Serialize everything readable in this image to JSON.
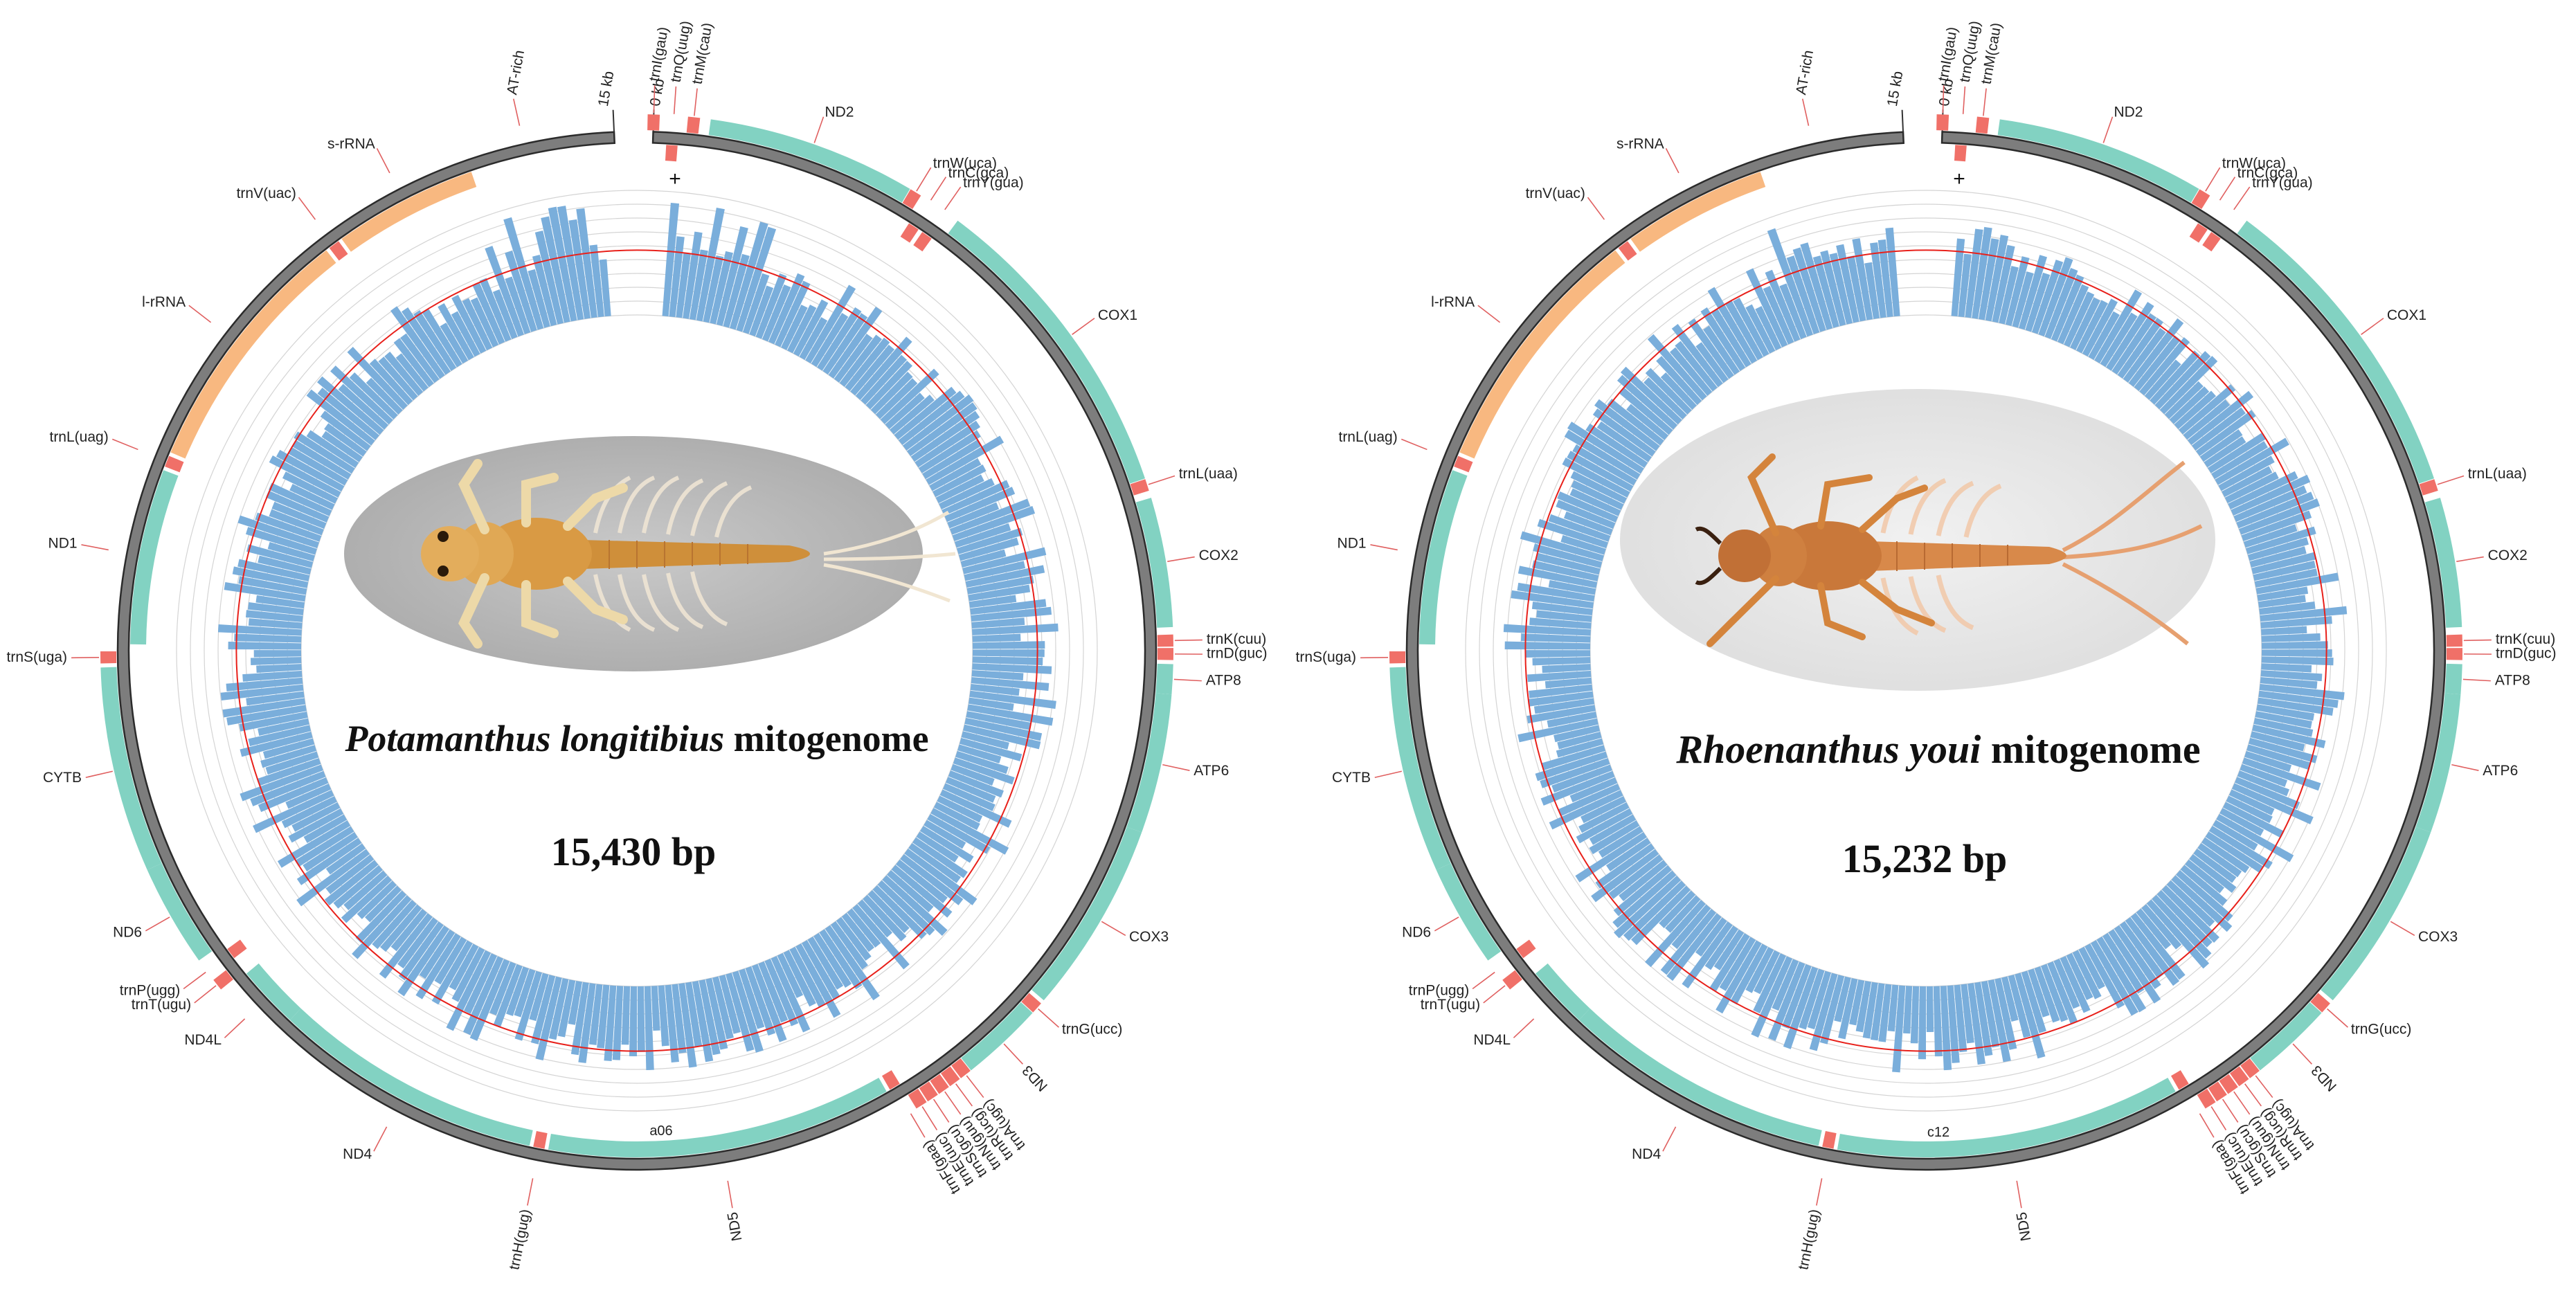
{
  "colors": {
    "pcg": "#82d2c2",
    "trna": "#f07068",
    "rrna": "#f8b880",
    "backbone": "#8c8c8c",
    "gc_bars": "#7aaedb",
    "average": "#e8201a",
    "grid": "#d4d4d4",
    "ticks": "#e06060"
  },
  "icons": {
    "insect": "mayfly-nymph-photo",
    "strand": "plus-sign"
  },
  "maps": [
    {
      "id": "left",
      "species": "Potamanthus longitibius",
      "suffix": " mitogenome",
      "length": "15,430 bp",
      "sample_code": "a06",
      "strand_marker": "+",
      "scale": {
        "start": "0 kb",
        "end": "15 kb"
      },
      "features": [
        {
          "label": "trnI(gau)",
          "type": "trna",
          "strand": "outer",
          "pos": 0.005
        },
        {
          "label": "trnQ(uug)",
          "type": "trna",
          "strand": "inner",
          "pos": 0.011
        },
        {
          "label": "trnM(cau)",
          "type": "trna",
          "strand": "outer",
          "pos": 0.017
        },
        {
          "label": "ND2",
          "type": "pcg",
          "strand": "outer",
          "start": 0.022,
          "end": 0.085
        },
        {
          "label": "trnW(uca)",
          "type": "trna",
          "strand": "outer",
          "pos": 0.087
        },
        {
          "label": "trnC(gca)",
          "type": "trna",
          "strand": "inner",
          "pos": 0.092
        },
        {
          "label": "trnY(gua)",
          "type": "trna",
          "strand": "inner",
          "pos": 0.097
        },
        {
          "label": "COX1",
          "type": "pcg",
          "strand": "outer",
          "start": 0.102,
          "end": 0.198
        },
        {
          "label": "trnL(uaa)",
          "type": "trna",
          "strand": "outer",
          "pos": 0.2
        },
        {
          "label": "COX2",
          "type": "pcg",
          "strand": "outer",
          "start": 0.204,
          "end": 0.243
        },
        {
          "label": "trnK(cuu)",
          "type": "trna",
          "strand": "outer",
          "pos": 0.247
        },
        {
          "label": "trnD(guc)",
          "type": "trna",
          "strand": "outer",
          "pos": 0.251
        },
        {
          "label": "ATP8",
          "type": "pcg",
          "strand": "outer",
          "start": 0.254,
          "end": 0.263
        },
        {
          "label": "ATP6",
          "type": "pcg",
          "strand": "outer",
          "start": 0.263,
          "end": 0.305
        },
        {
          "label": "COX3",
          "type": "pcg",
          "strand": "outer",
          "start": 0.305,
          "end": 0.363
        },
        {
          "label": "trnG(ucc)",
          "type": "trna",
          "strand": "outer",
          "pos": 0.366
        },
        {
          "label": "ND3",
          "type": "pcg",
          "strand": "outer",
          "start": 0.368,
          "end": 0.393
        },
        {
          "label": "trnA(ugc)",
          "type": "trna",
          "strand": "outer",
          "pos": 0.395
        },
        {
          "label": "trnR(ucg)",
          "type": "trna",
          "strand": "outer",
          "pos": 0.399
        },
        {
          "label": "trnN(guu)",
          "type": "trna",
          "strand": "outer",
          "pos": 0.403
        },
        {
          "label": "trnS(gcu)",
          "type": "trna",
          "strand": "outer",
          "pos": 0.407
        },
        {
          "label": "trnE(uuc)",
          "type": "trna",
          "strand": "outer",
          "pos": 0.411
        },
        {
          "label": "trnF(gaa)",
          "type": "trna",
          "strand": "inner",
          "pos": 0.415
        },
        {
          "label": "ND5",
          "type": "pcg",
          "strand": "inner",
          "start": 0.418,
          "end": 0.528
        },
        {
          "label": "trnH(gug)",
          "type": "trna",
          "strand": "inner",
          "pos": 0.531
        },
        {
          "label": "ND4",
          "type": "pcg",
          "strand": "inner",
          "start": 0.534,
          "end": 0.62
        },
        {
          "label": "ND4L",
          "type": "pcg",
          "strand": "inner",
          "start": 0.62,
          "end": 0.64
        },
        {
          "label": "trnT(ugu)",
          "type": "trna",
          "strand": "outer",
          "pos": 0.643
        },
        {
          "label": "trnP(ugg)",
          "type": "trna",
          "strand": "inner",
          "pos": 0.648
        },
        {
          "label": "ND6",
          "type": "pcg",
          "strand": "outer",
          "start": 0.652,
          "end": 0.683
        },
        {
          "label": "CYTB",
          "type": "pcg",
          "strand": "outer",
          "start": 0.683,
          "end": 0.745
        },
        {
          "label": "trnS(uga)",
          "type": "trna",
          "strand": "outer",
          "pos": 0.748
        },
        {
          "label": "ND1",
          "type": "pcg",
          "strand": "inner",
          "start": 0.752,
          "end": 0.808
        },
        {
          "label": "trnL(uag)",
          "type": "trna",
          "strand": "inner",
          "pos": 0.811
        },
        {
          "label": "l-rRNA",
          "type": "rrna",
          "strand": "inner",
          "start": 0.814,
          "end": 0.895
        },
        {
          "label": "trnV(uac)",
          "type": "trna",
          "strand": "inner",
          "pos": 0.898
        },
        {
          "label": "s-rRNA",
          "type": "rrna",
          "strand": "inner",
          "start": 0.901,
          "end": 0.947
        },
        {
          "label": "AT-rich",
          "type": "none",
          "strand": "outer",
          "pos": 0.965
        }
      ]
    },
    {
      "id": "right",
      "species": "Rhoenanthus youi",
      "suffix": " mitogenome",
      "length": "15,232 bp",
      "sample_code": "c12",
      "strand_marker": "+",
      "scale": {
        "start": "0 kb",
        "end": "15 kb"
      },
      "features": [
        {
          "label": "trnI(gau)",
          "type": "trna",
          "strand": "outer",
          "pos": 0.005
        },
        {
          "label": "trnQ(uug)",
          "type": "trna",
          "strand": "inner",
          "pos": 0.011
        },
        {
          "label": "trnM(cau)",
          "type": "trna",
          "strand": "outer",
          "pos": 0.017
        },
        {
          "label": "ND2",
          "type": "pcg",
          "strand": "outer",
          "start": 0.022,
          "end": 0.085
        },
        {
          "label": "trnW(uca)",
          "type": "trna",
          "strand": "outer",
          "pos": 0.087
        },
        {
          "label": "trnC(gca)",
          "type": "trna",
          "strand": "inner",
          "pos": 0.092
        },
        {
          "label": "trnY(gua)",
          "type": "trna",
          "strand": "inner",
          "pos": 0.097
        },
        {
          "label": "COX1",
          "type": "pcg",
          "strand": "outer",
          "start": 0.102,
          "end": 0.198
        },
        {
          "label": "trnL(uaa)",
          "type": "trna",
          "strand": "outer",
          "pos": 0.2
        },
        {
          "label": "COX2",
          "type": "pcg",
          "strand": "outer",
          "start": 0.204,
          "end": 0.243
        },
        {
          "label": "trnK(cuu)",
          "type": "trna",
          "strand": "outer",
          "pos": 0.247
        },
        {
          "label": "trnD(guc)",
          "type": "trna",
          "strand": "outer",
          "pos": 0.251
        },
        {
          "label": "ATP8",
          "type": "pcg",
          "strand": "outer",
          "start": 0.254,
          "end": 0.263
        },
        {
          "label": "ATP6",
          "type": "pcg",
          "strand": "outer",
          "start": 0.263,
          "end": 0.305
        },
        {
          "label": "COX3",
          "type": "pcg",
          "strand": "outer",
          "start": 0.305,
          "end": 0.363
        },
        {
          "label": "trnG(ucc)",
          "type": "trna",
          "strand": "outer",
          "pos": 0.366
        },
        {
          "label": "ND3",
          "type": "pcg",
          "strand": "outer",
          "start": 0.368,
          "end": 0.393
        },
        {
          "label": "trnA(ugc)",
          "type": "trna",
          "strand": "outer",
          "pos": 0.395
        },
        {
          "label": "trnR(ucg)",
          "type": "trna",
          "strand": "outer",
          "pos": 0.399
        },
        {
          "label": "trnN(guu)",
          "type": "trna",
          "strand": "outer",
          "pos": 0.403
        },
        {
          "label": "trnS(gcu)",
          "type": "trna",
          "strand": "outer",
          "pos": 0.407
        },
        {
          "label": "trnE(uuc)",
          "type": "trna",
          "strand": "outer",
          "pos": 0.411
        },
        {
          "label": "trnF(gaa)",
          "type": "trna",
          "strand": "inner",
          "pos": 0.415
        },
        {
          "label": "ND5",
          "type": "pcg",
          "strand": "inner",
          "start": 0.418,
          "end": 0.528
        },
        {
          "label": "trnH(gug)",
          "type": "trna",
          "strand": "inner",
          "pos": 0.531
        },
        {
          "label": "ND4",
          "type": "pcg",
          "strand": "inner",
          "start": 0.534,
          "end": 0.62
        },
        {
          "label": "ND4L",
          "type": "pcg",
          "strand": "inner",
          "start": 0.62,
          "end": 0.64
        },
        {
          "label": "trnT(ugu)",
          "type": "trna",
          "strand": "outer",
          "pos": 0.643
        },
        {
          "label": "trnP(ugg)",
          "type": "trna",
          "strand": "inner",
          "pos": 0.648
        },
        {
          "label": "ND6",
          "type": "pcg",
          "strand": "outer",
          "start": 0.652,
          "end": 0.683
        },
        {
          "label": "CYTB",
          "type": "pcg",
          "strand": "outer",
          "start": 0.683,
          "end": 0.745
        },
        {
          "label": "trnS(uga)",
          "type": "trna",
          "strand": "outer",
          "pos": 0.748
        },
        {
          "label": "ND1",
          "type": "pcg",
          "strand": "inner",
          "start": 0.752,
          "end": 0.808
        },
        {
          "label": "trnL(uag)",
          "type": "trna",
          "strand": "inner",
          "pos": 0.811
        },
        {
          "label": "l-rRNA",
          "type": "rrna",
          "strand": "inner",
          "start": 0.814,
          "end": 0.895
        },
        {
          "label": "trnV(uac)",
          "type": "trna",
          "strand": "inner",
          "pos": 0.898
        },
        {
          "label": "s-rRNA",
          "type": "rrna",
          "strand": "inner",
          "start": 0.901,
          "end": 0.947
        },
        {
          "label": "AT-rich",
          "type": "none",
          "strand": "outer",
          "pos": 0.965
        }
      ]
    }
  ]
}
